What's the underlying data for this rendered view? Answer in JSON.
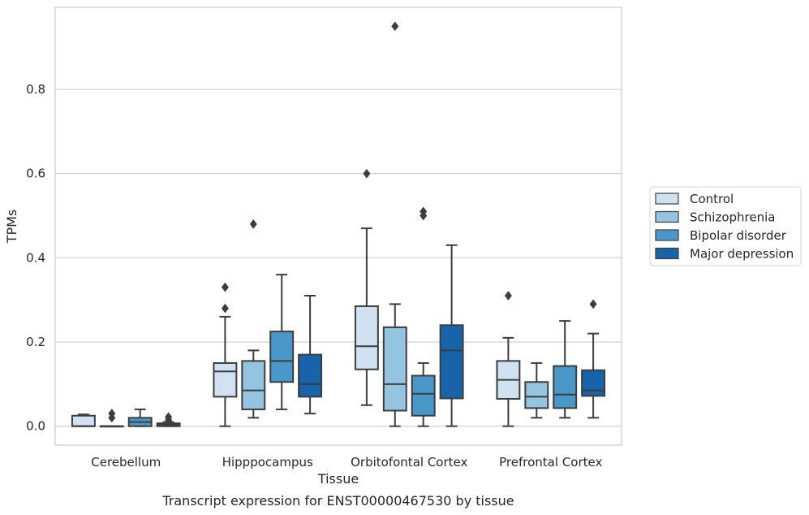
{
  "chart_data": {
    "type": "box",
    "title": "",
    "caption": "Transcript expression for ENST00000467530 by tissue",
    "xlabel": "Tissue",
    "ylabel": "TPMs",
    "ylim": [
      -0.045,
      0.995
    ],
    "yticks": [
      0.0,
      0.2,
      0.4,
      0.6,
      0.8
    ],
    "ytick_labels": [
      "0.0",
      "0.2",
      "0.4",
      "0.6",
      "0.8"
    ],
    "grid": "horizontal",
    "legend_position": "right",
    "categories": [
      "Cerebellum",
      "Hipppocampus",
      "Orbitofontal Cortex",
      "Prefrontal Cortex"
    ],
    "series": [
      {
        "name": "Control",
        "color": "#d0e1f2",
        "boxes": [
          {
            "whislo": 0.0,
            "q1": 0.0,
            "med": 0.0,
            "q3": 0.025,
            "whishi": 0.028,
            "fliers": []
          },
          {
            "whislo": 0.0,
            "q1": 0.07,
            "med": 0.13,
            "q3": 0.15,
            "whishi": 0.26,
            "fliers": [
              0.28,
              0.33
            ]
          },
          {
            "whislo": 0.05,
            "q1": 0.135,
            "med": 0.19,
            "q3": 0.285,
            "whishi": 0.47,
            "fliers": [
              0.6
            ]
          },
          {
            "whislo": 0.0,
            "q1": 0.065,
            "med": 0.11,
            "q3": 0.155,
            "whishi": 0.21,
            "fliers": [
              0.31
            ]
          }
        ]
      },
      {
        "name": "Schizophrenia",
        "color": "#94c4df",
        "boxes": [
          {
            "whislo": 0.0,
            "q1": 0.0,
            "med": 0.0,
            "q3": 0.0,
            "whishi": 0.0,
            "fliers": [
              0.02,
              0.03
            ]
          },
          {
            "whislo": 0.02,
            "q1": 0.04,
            "med": 0.085,
            "q3": 0.155,
            "whishi": 0.18,
            "fliers": [
              0.48
            ]
          },
          {
            "whislo": 0.0,
            "q1": 0.037,
            "med": 0.1,
            "q3": 0.235,
            "whishi": 0.29,
            "fliers": [
              0.95
            ]
          },
          {
            "whislo": 0.02,
            "q1": 0.043,
            "med": 0.07,
            "q3": 0.105,
            "whishi": 0.15,
            "fliers": []
          }
        ]
      },
      {
        "name": "Bipolar disorder",
        "color": "#4a98c9",
        "boxes": [
          {
            "whislo": 0.0,
            "q1": 0.0,
            "med": 0.01,
            "q3": 0.02,
            "whishi": 0.04,
            "fliers": []
          },
          {
            "whislo": 0.04,
            "q1": 0.105,
            "med": 0.155,
            "q3": 0.225,
            "whishi": 0.36,
            "fliers": []
          },
          {
            "whislo": 0.0,
            "q1": 0.025,
            "med": 0.077,
            "q3": 0.12,
            "whishi": 0.15,
            "fliers": [
              0.5,
              0.51
            ]
          },
          {
            "whislo": 0.02,
            "q1": 0.043,
            "med": 0.075,
            "q3": 0.143,
            "whishi": 0.25,
            "fliers": []
          }
        ]
      },
      {
        "name": "Major depression",
        "color": "#1764ab",
        "boxes": [
          {
            "whislo": 0.0,
            "q1": 0.0,
            "med": 0.003,
            "q3": 0.007,
            "whishi": 0.01,
            "fliers": [
              0.015,
              0.022
            ]
          },
          {
            "whislo": 0.03,
            "q1": 0.07,
            "med": 0.1,
            "q3": 0.17,
            "whishi": 0.31,
            "fliers": []
          },
          {
            "whislo": 0.0,
            "q1": 0.066,
            "med": 0.18,
            "q3": 0.24,
            "whishi": 0.43,
            "fliers": []
          },
          {
            "whislo": 0.02,
            "q1": 0.072,
            "med": 0.085,
            "q3": 0.133,
            "whishi": 0.22,
            "fliers": [
              0.29
            ]
          }
        ]
      }
    ]
  }
}
